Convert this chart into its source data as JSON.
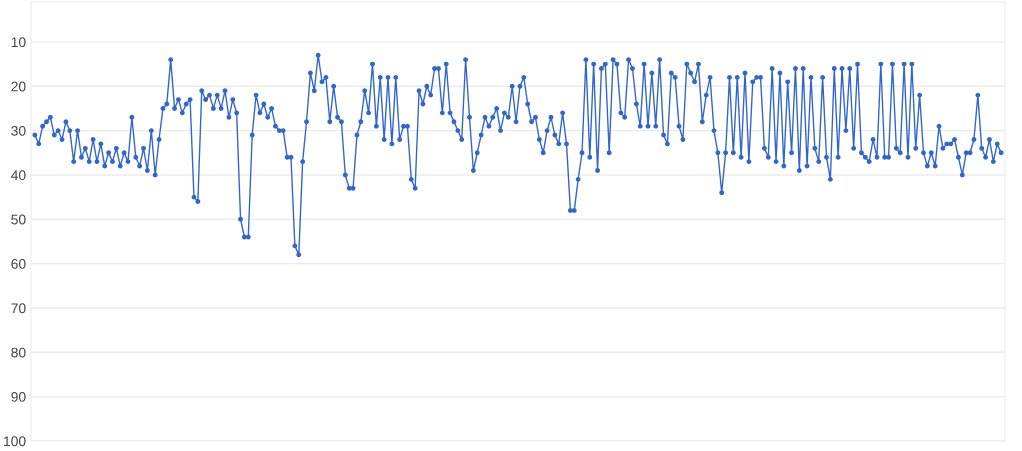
{
  "chart_data": {
    "type": "line",
    "tick_labels": "y",
    "grid": "y",
    "marker": "circle",
    "line_style": "solid",
    "ylim": [
      100,
      1
    ],
    "categories": [
      null,
      null,
      null,
      null,
      null,
      null,
      null,
      null,
      null,
      null,
      null,
      null,
      null,
      null,
      null,
      null,
      null,
      null,
      null,
      null,
      null,
      null,
      null,
      null,
      null,
      null,
      null,
      null,
      null,
      null,
      null,
      null,
      null,
      null,
      null,
      null,
      null,
      null,
      null,
      null,
      null,
      null,
      null,
      null,
      null,
      null,
      null,
      null,
      null,
      null,
      null,
      null,
      null,
      null,
      null,
      null,
      null,
      null,
      null,
      null,
      null,
      null,
      null,
      null,
      null,
      null,
      null,
      null,
      null,
      null,
      null,
      null,
      null,
      null,
      null,
      null,
      null,
      null,
      null,
      null,
      null,
      null,
      null,
      null,
      null,
      null,
      null,
      null,
      null,
      null,
      null,
      null,
      null,
      null,
      null,
      null,
      null,
      null,
      null,
      null,
      null,
      null,
      null,
      null,
      null,
      null,
      null,
      null,
      null,
      null,
      null,
      null,
      null,
      null,
      null,
      null,
      null,
      null,
      null,
      null,
      null,
      null,
      null,
      null,
      null,
      null,
      null,
      null,
      null,
      null,
      null,
      null,
      null,
      null,
      null,
      null,
      null,
      null,
      null,
      null,
      null,
      null,
      null,
      null,
      null,
      null,
      null,
      null,
      null,
      null,
      null,
      null,
      null,
      null,
      null,
      null,
      null,
      null,
      null,
      null,
      null,
      null,
      null,
      null,
      null,
      null,
      null,
      null,
      null,
      null,
      null,
      null,
      null,
      null,
      null,
      null,
      null,
      null,
      null,
      null,
      null,
      null,
      null,
      null,
      null,
      null,
      null,
      null,
      null,
      null,
      null,
      null,
      null,
      null,
      null,
      null,
      null,
      null,
      null,
      null,
      null,
      null,
      null,
      null,
      null,
      null,
      null,
      null,
      null,
      null,
      null,
      null,
      null,
      null,
      null,
      null,
      null,
      null,
      null,
      null,
      null,
      null,
      null,
      null,
      null,
      null,
      null,
      null,
      null,
      null,
      null,
      null,
      null,
      null,
      null,
      null,
      null,
      null,
      null,
      null,
      null,
      null,
      null,
      null,
      null,
      null,
      null,
      null,
      null,
      null
    ],
    "yticks": [
      10,
      20,
      30,
      40,
      50,
      60,
      70,
      80,
      90,
      100
    ],
    "series": [
      {
        "color": "#3366cc",
        "values": [
          31,
          33,
          29,
          28,
          27,
          31,
          30,
          32,
          28,
          30,
          37,
          30,
          36,
          34,
          37,
          32,
          37,
          33,
          38,
          35,
          37,
          34,
          38,
          35,
          37,
          27,
          36,
          38,
          34,
          39,
          30,
          40,
          32,
          25,
          24,
          14,
          25,
          23,
          26,
          24,
          23,
          45,
          46,
          21,
          23,
          22,
          25,
          22,
          25,
          21,
          27,
          23,
          26,
          50,
          54,
          54,
          31,
          22,
          26,
          24,
          27,
          25,
          29,
          30,
          30,
          36,
          36,
          56,
          58,
          37,
          28,
          17,
          21,
          13,
          19,
          18,
          28,
          20,
          27,
          28,
          40,
          43,
          43,
          31,
          28,
          21,
          26,
          15,
          29,
          18,
          32,
          18,
          33,
          18,
          32,
          29,
          29,
          41,
          43,
          21,
          24,
          20,
          22,
          16,
          16,
          26,
          15,
          26,
          28,
          30,
          32,
          14,
          27,
          39,
          35,
          31,
          27,
          29,
          27,
          25,
          30,
          26,
          27,
          20,
          28,
          20,
          18,
          24,
          28,
          27,
          32,
          35,
          30,
          27,
          31,
          33,
          26,
          33,
          48,
          48,
          41,
          35,
          14,
          36,
          15,
          39,
          16,
          15,
          35,
          14,
          15,
          26,
          27,
          14,
          16,
          24,
          29,
          15,
          29,
          17,
          29,
          14,
          31,
          33,
          17,
          18,
          29,
          32,
          15,
          17,
          19,
          15,
          28,
          22,
          18,
          30,
          35,
          44,
          35,
          18,
          35,
          18,
          36,
          17,
          37,
          19,
          18,
          18,
          34,
          36,
          16,
          37,
          17,
          38,
          19,
          35,
          16,
          39,
          16,
          38,
          18,
          34,
          37,
          18,
          36,
          41,
          16,
          36,
          16,
          30,
          16,
          34,
          15,
          35,
          36,
          37,
          32,
          36,
          15,
          36,
          36,
          15,
          34,
          35,
          15,
          36,
          15,
          34,
          22,
          35,
          38,
          35,
          38,
          29,
          34,
          33,
          33,
          32,
          36,
          40,
          35,
          35,
          32,
          22,
          34,
          36,
          32,
          37,
          33,
          35
        ]
      }
    ]
  }
}
